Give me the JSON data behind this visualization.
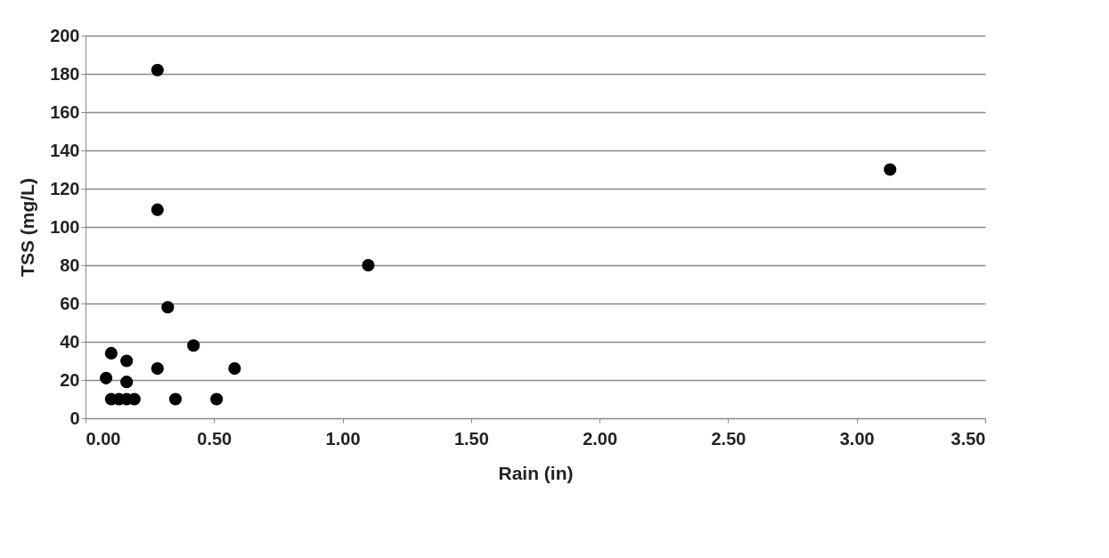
{
  "chart_data": {
    "type": "scatter",
    "xlabel": "Rain (in)",
    "ylabel": "TSS (mg/L)",
    "x": [
      0.28,
      0.28,
      0.32,
      0.42,
      0.58,
      0.28,
      0.1,
      0.08,
      0.16,
      0.16,
      0.35,
      0.51,
      1.1,
      3.13,
      0.1,
      0.13,
      0.16,
      0.19
    ],
    "series": [
      {
        "color": "#000000",
        "values": [
          182,
          109,
          58,
          38,
          26,
          26,
          34,
          21,
          30,
          19,
          10,
          10,
          80,
          130,
          10,
          10,
          10,
          10
        ]
      }
    ],
    "xlim": [
      0,
      3.5
    ],
    "xticks": [
      {
        "value": 0,
        "label": "0.00"
      },
      {
        "value": 0.5,
        "label": "0.50"
      },
      {
        "value": 1,
        "label": "1.00"
      },
      {
        "value": 1.5,
        "label": "1.50"
      },
      {
        "value": 2,
        "label": "2.00"
      },
      {
        "value": 2.5,
        "label": "2.50"
      },
      {
        "value": 3,
        "label": "3.00"
      },
      {
        "value": 3.5,
        "label": "3.50"
      }
    ],
    "ylim": [
      0,
      200
    ],
    "yticks": [
      0,
      20,
      40,
      60,
      80,
      100,
      120,
      140,
      160,
      180,
      200
    ],
    "grid": "y",
    "marker": "circle"
  }
}
